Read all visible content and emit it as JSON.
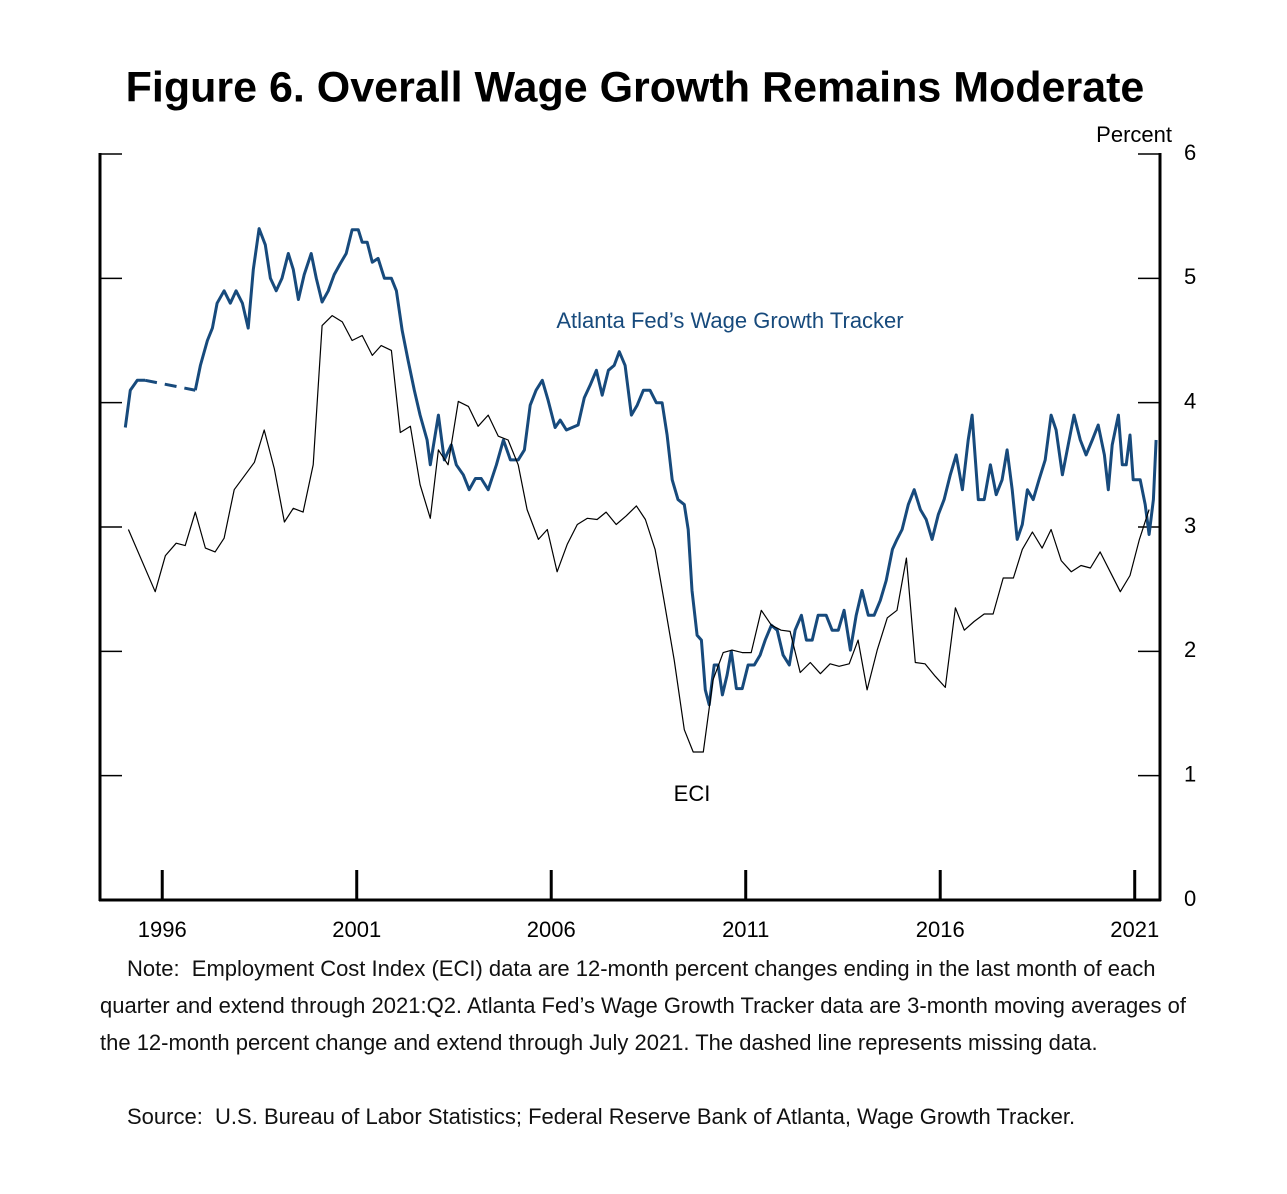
{
  "chart_data": {
    "type": "line",
    "title": "Figure 6. Overall Wage Growth Remains Moderate",
    "y_label": "Percent",
    "xlim": [
      1994.4,
      2021.65
    ],
    "xticks": [
      1996,
      2001,
      2006,
      2011,
      2016,
      2021
    ],
    "ylim": [
      0,
      6
    ],
    "yticks": [
      0,
      1,
      2,
      3,
      4,
      5,
      6
    ],
    "series": [
      {
        "name": "Atlanta Fed’s Wage Growth Tracker",
        "color": "#174a7c",
        "gap_style": "dashed",
        "x": [
          1995.05,
          1995.18,
          1995.36,
          1995.56,
          1996.2,
          1996.85,
          1996.98,
          1997.16,
          1997.29,
          1997.41,
          1997.59,
          1997.75,
          1997.9,
          1998.06,
          1998.21,
          1998.34,
          1998.49,
          1998.65,
          1998.78,
          1998.93,
          1999.08,
          1999.24,
          1999.37,
          1999.5,
          1999.65,
          1999.83,
          1999.96,
          2000.11,
          2000.27,
          2000.42,
          2000.58,
          2000.73,
          2000.88,
          2001.04,
          2001.14,
          2001.27,
          2001.4,
          2001.55,
          2001.71,
          2001.89,
          2002.02,
          2002.17,
          2002.32,
          2002.48,
          2002.63,
          2002.81,
          2002.89,
          2003.1,
          2003.25,
          2003.43,
          2003.56,
          2003.74,
          2003.89,
          2004.05,
          2004.2,
          2004.38,
          2004.59,
          2004.77,
          2004.95,
          2005.15,
          2005.31,
          2005.46,
          2005.61,
          2005.77,
          2005.92,
          2006.1,
          2006.23,
          2006.39,
          2006.54,
          2006.69,
          2006.85,
          2007.0,
          2007.16,
          2007.31,
          2007.47,
          2007.62,
          2007.75,
          2007.9,
          2008.06,
          2008.21,
          2008.37,
          2008.54,
          2008.7,
          2008.85,
          2008.98,
          2009.11,
          2009.26,
          2009.42,
          2009.52,
          2009.62,
          2009.75,
          2009.86,
          2009.96,
          2010.06,
          2010.19,
          2010.29,
          2010.4,
          2010.52,
          2010.63,
          2010.76,
          2010.91,
          2011.06,
          2011.22,
          2011.37,
          2011.5,
          2011.66,
          2011.81,
          2011.96,
          2012.12,
          2012.27,
          2012.43,
          2012.56,
          2012.71,
          2012.86,
          2013.07,
          2013.22,
          2013.38,
          2013.53,
          2013.69,
          2013.84,
          2013.99,
          2014.15,
          2014.3,
          2014.46,
          2014.61,
          2014.77,
          2014.89,
          2015.02,
          2015.18,
          2015.33,
          2015.49,
          2015.64,
          2015.79,
          2015.95,
          2016.1,
          2016.26,
          2016.41,
          2016.57,
          2016.72,
          2016.82,
          2016.98,
          2017.13,
          2017.29,
          2017.44,
          2017.59,
          2017.72,
          2017.85,
          2017.98,
          2018.11,
          2018.24,
          2018.39,
          2018.54,
          2018.7,
          2018.85,
          2018.98,
          2019.14,
          2019.29,
          2019.44,
          2019.6,
          2019.75,
          2019.91,
          2020.06,
          2020.22,
          2020.32,
          2020.42,
          2020.58,
          2020.68,
          2020.78,
          2020.88,
          2020.96,
          2021.14,
          2021.27,
          2021.37,
          2021.48,
          2021.55
        ],
        "values": [
          3.8,
          4.1,
          4.18,
          4.18,
          null,
          4.1,
          4.3,
          4.5,
          4.6,
          4.8,
          4.9,
          4.8,
          4.9,
          4.8,
          4.6,
          5.07,
          5.4,
          5.27,
          5.0,
          4.9,
          5.0,
          5.2,
          5.07,
          4.83,
          5.03,
          5.2,
          5.0,
          4.81,
          4.9,
          5.03,
          5.12,
          5.2,
          5.39,
          5.39,
          5.29,
          5.29,
          5.13,
          5.16,
          5.0,
          5.0,
          4.9,
          4.58,
          4.34,
          4.1,
          3.9,
          3.7,
          3.5,
          3.9,
          3.54,
          3.66,
          3.5,
          3.42,
          3.3,
          3.39,
          3.39,
          3.3,
          3.5,
          3.7,
          3.54,
          3.54,
          3.62,
          3.98,
          4.1,
          4.18,
          4.02,
          3.8,
          3.86,
          3.78,
          3.8,
          3.82,
          4.04,
          4.14,
          4.26,
          4.06,
          4.26,
          4.3,
          4.41,
          4.3,
          3.9,
          3.98,
          4.1,
          4.1,
          4.0,
          4.0,
          3.74,
          3.38,
          3.22,
          3.18,
          2.98,
          2.49,
          2.13,
          2.09,
          1.69,
          1.57,
          1.89,
          1.89,
          1.65,
          1.81,
          2.0,
          1.7,
          1.7,
          1.89,
          1.89,
          1.97,
          2.09,
          2.21,
          2.17,
          1.97,
          1.89,
          2.17,
          2.29,
          2.09,
          2.09,
          2.29,
          2.29,
          2.17,
          2.17,
          2.33,
          2.01,
          2.29,
          2.49,
          2.29,
          2.29,
          2.41,
          2.57,
          2.82,
          2.9,
          2.98,
          3.18,
          3.3,
          3.14,
          3.06,
          2.9,
          3.1,
          3.22,
          3.42,
          3.58,
          3.3,
          3.7,
          3.9,
          3.22,
          3.22,
          3.5,
          3.26,
          3.38,
          3.62,
          3.3,
          2.9,
          3.02,
          3.3,
          3.22,
          3.38,
          3.54,
          3.9,
          3.78,
          3.42,
          3.66,
          3.9,
          3.7,
          3.58,
          3.7,
          3.82,
          3.58,
          3.3,
          3.66,
          3.9,
          3.5,
          3.5,
          3.74,
          3.38,
          3.38,
          3.18,
          2.94,
          3.22,
          3.7
        ]
      },
      {
        "name": "ECI",
        "color": "#000000",
        "x": [
          1995.13,
          1995.82,
          1996.08,
          1996.36,
          1996.59,
          1996.85,
          1997.11,
          1997.36,
          1997.59,
          1997.85,
          1998.37,
          1998.62,
          1998.88,
          1999.14,
          1999.37,
          1999.62,
          1999.88,
          2000.11,
          2000.37,
          2000.63,
          2000.88,
          2001.14,
          2001.4,
          2001.63,
          2001.89,
          2002.12,
          2002.38,
          2002.63,
          2002.89,
          2003.1,
          2003.35,
          2003.61,
          2003.87,
          2004.12,
          2004.38,
          2004.64,
          2004.89,
          2005.15,
          2005.38,
          2005.67,
          2005.9,
          2006.15,
          2006.41,
          2006.67,
          2006.93,
          2007.18,
          2007.41,
          2007.67,
          2007.93,
          2008.19,
          2008.42,
          2008.67,
          2008.9,
          2009.16,
          2009.42,
          2009.65,
          2009.91,
          2010.16,
          2010.42,
          2010.65,
          2010.91,
          2011.14,
          2011.4,
          2011.66,
          2011.91,
          2012.14,
          2012.4,
          2012.66,
          2012.92,
          2013.17,
          2013.4,
          2013.66,
          2013.89,
          2014.12,
          2014.38,
          2014.64,
          2014.89,
          2015.13,
          2015.36,
          2015.61,
          2015.87,
          2016.13,
          2016.39,
          2016.62,
          2016.87,
          2017.13,
          2017.36,
          2017.62,
          2017.88,
          2018.11,
          2018.37,
          2018.62,
          2018.85,
          2019.11,
          2019.37,
          2019.62,
          2019.86,
          2020.11,
          2020.37,
          2020.63,
          2020.88,
          2021.12,
          2021.37
        ],
        "values": [
          2.98,
          2.48,
          2.77,
          2.87,
          2.85,
          3.12,
          2.83,
          2.8,
          2.91,
          3.3,
          3.52,
          3.78,
          3.47,
          3.04,
          3.15,
          3.12,
          3.5,
          4.62,
          4.7,
          4.65,
          4.5,
          4.54,
          4.38,
          4.46,
          4.42,
          3.76,
          3.81,
          3.34,
          3.07,
          3.62,
          3.5,
          4.01,
          3.97,
          3.81,
          3.9,
          3.73,
          3.7,
          3.5,
          3.14,
          2.9,
          2.98,
          2.64,
          2.86,
          3.02,
          3.07,
          3.06,
          3.12,
          3.02,
          3.09,
          3.17,
          3.06,
          2.82,
          2.41,
          1.93,
          1.37,
          1.19,
          1.19,
          1.77,
          1.99,
          2.01,
          1.99,
          1.99,
          2.33,
          2.21,
          2.17,
          2.16,
          1.83,
          1.91,
          1.82,
          1.9,
          1.88,
          1.9,
          2.09,
          1.69,
          2.01,
          2.27,
          2.33,
          2.75,
          1.91,
          1.9,
          1.8,
          1.71,
          2.35,
          2.17,
          2.24,
          2.3,
          2.3,
          2.59,
          2.59,
          2.82,
          2.96,
          2.83,
          2.98,
          2.73,
          2.64,
          2.69,
          2.67,
          2.8,
          2.64,
          2.48,
          2.61,
          2.9,
          3.14
        ]
      }
    ],
    "note": "Note:  Employment Cost Index (ECI) data are 12-month percent changes ending in the last month of each quarter and extend through 2021:Q2. Atlanta Fed’s Wage Growth Tracker data are 3-month moving averages of the 12-month percent change and extend through July 2021. The dashed line represents missing data.",
    "source": "Source:  U.S. Bureau of Labor Statistics; Federal Reserve Bank of Atlanta, Wage Growth Tracker."
  }
}
